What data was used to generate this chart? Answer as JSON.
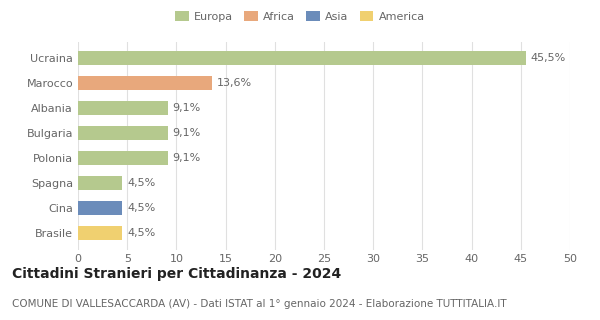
{
  "countries": [
    "Ucraina",
    "Marocco",
    "Albania",
    "Bulgaria",
    "Polonia",
    "Spagna",
    "Cina",
    "Brasile"
  ],
  "values": [
    45.5,
    13.6,
    9.1,
    9.1,
    9.1,
    4.5,
    4.5,
    4.5
  ],
  "labels": [
    "45,5%",
    "13,6%",
    "9,1%",
    "9,1%",
    "9,1%",
    "4,5%",
    "4,5%",
    "4,5%"
  ],
  "colors": [
    "#b5c98e",
    "#e8a87c",
    "#b5c98e",
    "#b5c98e",
    "#b5c98e",
    "#b5c98e",
    "#6b8cba",
    "#f0d070"
  ],
  "legend_labels": [
    "Europa",
    "Africa",
    "Asia",
    "America"
  ],
  "legend_colors": [
    "#b5c98e",
    "#e8a87c",
    "#6b8cba",
    "#f0d070"
  ],
  "title": "Cittadini Stranieri per Cittadinanza - 2024",
  "subtitle": "COMUNE DI VALLESACCARDA (AV) - Dati ISTAT al 1° gennaio 2024 - Elaborazione TUTTITALIA.IT",
  "xlim": [
    0,
    50
  ],
  "xticks": [
    0,
    5,
    10,
    15,
    20,
    25,
    30,
    35,
    40,
    45,
    50
  ],
  "background_color": "#ffffff",
  "grid_color": "#e0e0e0",
  "bar_height": 0.55,
  "label_fontsize": 8,
  "tick_fontsize": 8,
  "title_fontsize": 10,
  "subtitle_fontsize": 7.5
}
